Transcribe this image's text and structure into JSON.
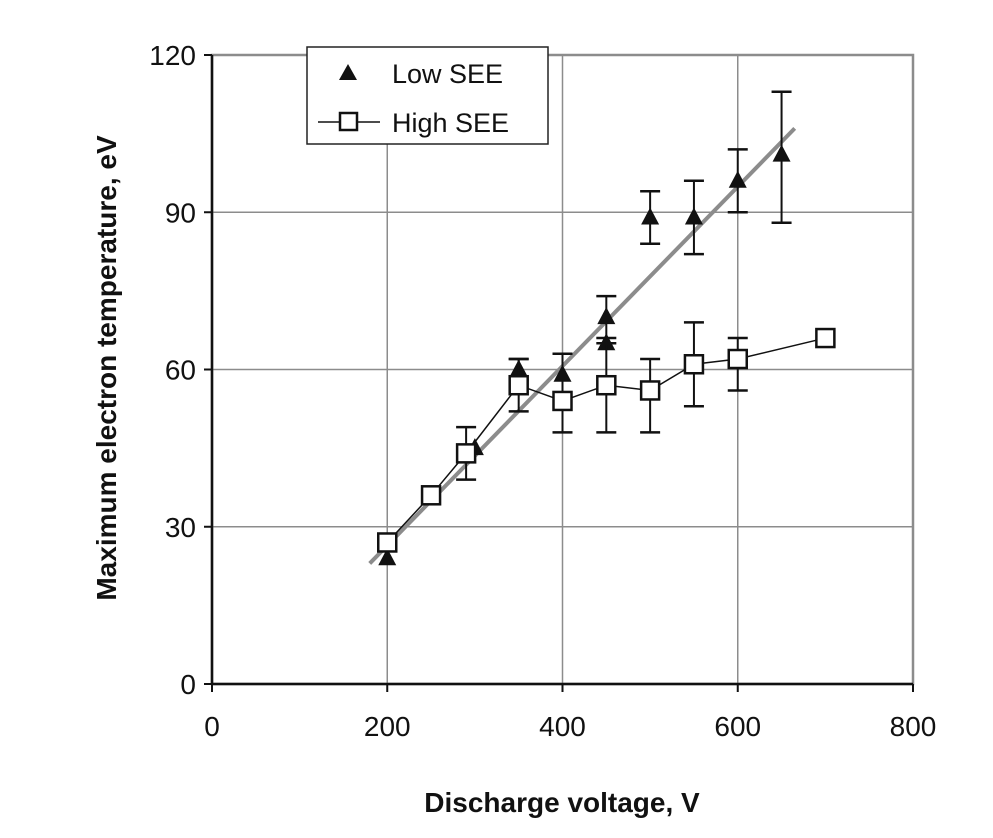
{
  "chart_data": {
    "type": "scatter",
    "title": "",
    "xlabel": "Discharge voltage, V",
    "ylabel": "Maximum electron temperature, eV",
    "xlim": [
      0,
      800
    ],
    "ylim": [
      0,
      120
    ],
    "x_ticks": [
      "0",
      "200",
      "400",
      "600",
      "800"
    ],
    "y_ticks": [
      "0",
      "30",
      "60",
      "90",
      "120"
    ],
    "grid": true,
    "legend_position": "top-left",
    "series": [
      {
        "name": "Low SEE",
        "marker": "filled-triangle",
        "line": false,
        "points": [
          {
            "x": 200,
            "y": 24
          },
          {
            "x": 300,
            "y": 45
          },
          {
            "x": 350,
            "y": 60,
            "err_low": 58,
            "err_high": 62
          },
          {
            "x": 400,
            "y": 59
          },
          {
            "x": 450,
            "y": 70,
            "err_low": 66,
            "err_high": 74
          },
          {
            "x": 450,
            "y": 65
          },
          {
            "x": 500,
            "y": 89,
            "err_low": 84,
            "err_high": 94
          },
          {
            "x": 550,
            "y": 89,
            "err_low": 82,
            "err_high": 96
          },
          {
            "x": 600,
            "y": 96,
            "err_low": 90,
            "err_high": 102
          },
          {
            "x": 650,
            "y": 101,
            "err_low": 88,
            "err_high": 113
          }
        ]
      },
      {
        "name": "High SEE",
        "marker": "open-square",
        "line": true,
        "points": [
          {
            "x": 200,
            "y": 27
          },
          {
            "x": 250,
            "y": 36
          },
          {
            "x": 290,
            "y": 44,
            "err_low": 39,
            "err_high": 49
          },
          {
            "x": 350,
            "y": 57,
            "err_low": 52,
            "err_high": 62
          },
          {
            "x": 400,
            "y": 54,
            "err_low": 48,
            "err_high": 63
          },
          {
            "x": 450,
            "y": 57,
            "err_low": 48,
            "err_high": 65
          },
          {
            "x": 500,
            "y": 56,
            "err_low": 48,
            "err_high": 62
          },
          {
            "x": 550,
            "y": 61,
            "err_low": 53,
            "err_high": 69
          },
          {
            "x": 600,
            "y": 62,
            "err_low": 56,
            "err_high": 66
          },
          {
            "x": 700,
            "y": 66
          }
        ]
      }
    ],
    "trendline": {
      "color": "#8c8c8c",
      "from": {
        "x": 180,
        "y": 23
      },
      "to": {
        "x": 665,
        "y": 106
      }
    }
  }
}
